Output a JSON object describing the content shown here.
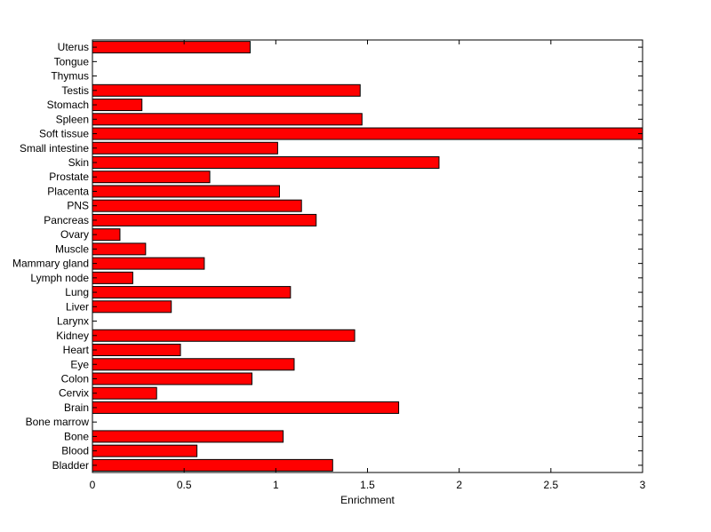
{
  "chart_data": {
    "type": "bar",
    "orientation": "horizontal",
    "title": "",
    "xlabel": "Enrichment",
    "ylabel": "",
    "xlim": [
      0,
      3
    ],
    "xticks": [
      0,
      0.5,
      1,
      1.5,
      2,
      2.5,
      3
    ],
    "xtick_labels": [
      "0",
      "0.5",
      "1",
      "1.5",
      "2",
      "2.5",
      "3"
    ],
    "grid": false,
    "legend": "none",
    "bar_color": "#ff0000",
    "edge_color": "#000000",
    "categories": [
      "Bladder",
      "Blood",
      "Bone",
      "Bone marrow",
      "Brain",
      "Cervix",
      "Colon",
      "Eye",
      "Heart",
      "Kidney",
      "Larynx",
      "Liver",
      "Lung",
      "Lymph node",
      "Mammary gland",
      "Muscle",
      "Ovary",
      "Pancreas",
      "PNS",
      "Placenta",
      "Prostate",
      "Skin",
      "Small intestine",
      "Soft tissue",
      "Spleen",
      "Stomach",
      "Testis",
      "Thymus",
      "Tongue",
      "Uterus"
    ],
    "values": [
      1.31,
      0.57,
      1.04,
      0,
      1.67,
      0.35,
      0.87,
      1.1,
      0.48,
      1.43,
      0,
      0.43,
      1.08,
      0.22,
      0.61,
      0.29,
      0.15,
      1.22,
      1.14,
      1.02,
      0.64,
      1.89,
      1.01,
      3.0,
      1.47,
      0.27,
      1.46,
      0,
      0,
      0.86
    ]
  }
}
